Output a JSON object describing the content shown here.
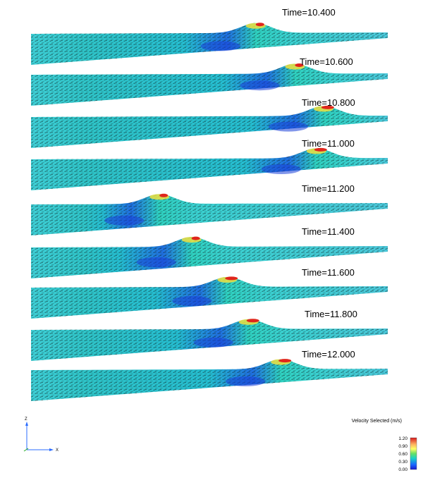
{
  "frames": [
    {
      "time_label": "Time=10.400",
      "wave_position": 0.63,
      "breaking": false
    },
    {
      "time_label": "Time=10.600",
      "wave_position": 0.74,
      "breaking": false
    },
    {
      "time_label": "Time=10.800",
      "wave_position": 0.82,
      "breaking": true
    },
    {
      "time_label": "Time=11.000",
      "wave_position": 0.8,
      "breaking": true
    },
    {
      "time_label": "Time=11.200",
      "wave_position": 0.36,
      "breaking": false
    },
    {
      "time_label": "Time=11.400",
      "wave_position": 0.45,
      "breaking": false
    },
    {
      "time_label": "Time=11.600",
      "wave_position": 0.55,
      "breaking": true
    },
    {
      "time_label": "Time=11.800",
      "wave_position": 0.61,
      "breaking": true
    },
    {
      "time_label": "Time=12.000",
      "wave_position": 0.7,
      "breaking": true
    }
  ],
  "axes": {
    "z_label": "Z",
    "x_label": "X"
  },
  "legend": {
    "title": "Velocity Selected (m/s)",
    "ticks": [
      "1.20",
      "0.90",
      "0.60",
      "0.30",
      "0.00"
    ],
    "colors": [
      "#d7191c",
      "#fdae61",
      "#ffff66",
      "#66e066",
      "#1ad1c8",
      "#1a66ff",
      "#1a1acc"
    ]
  }
}
